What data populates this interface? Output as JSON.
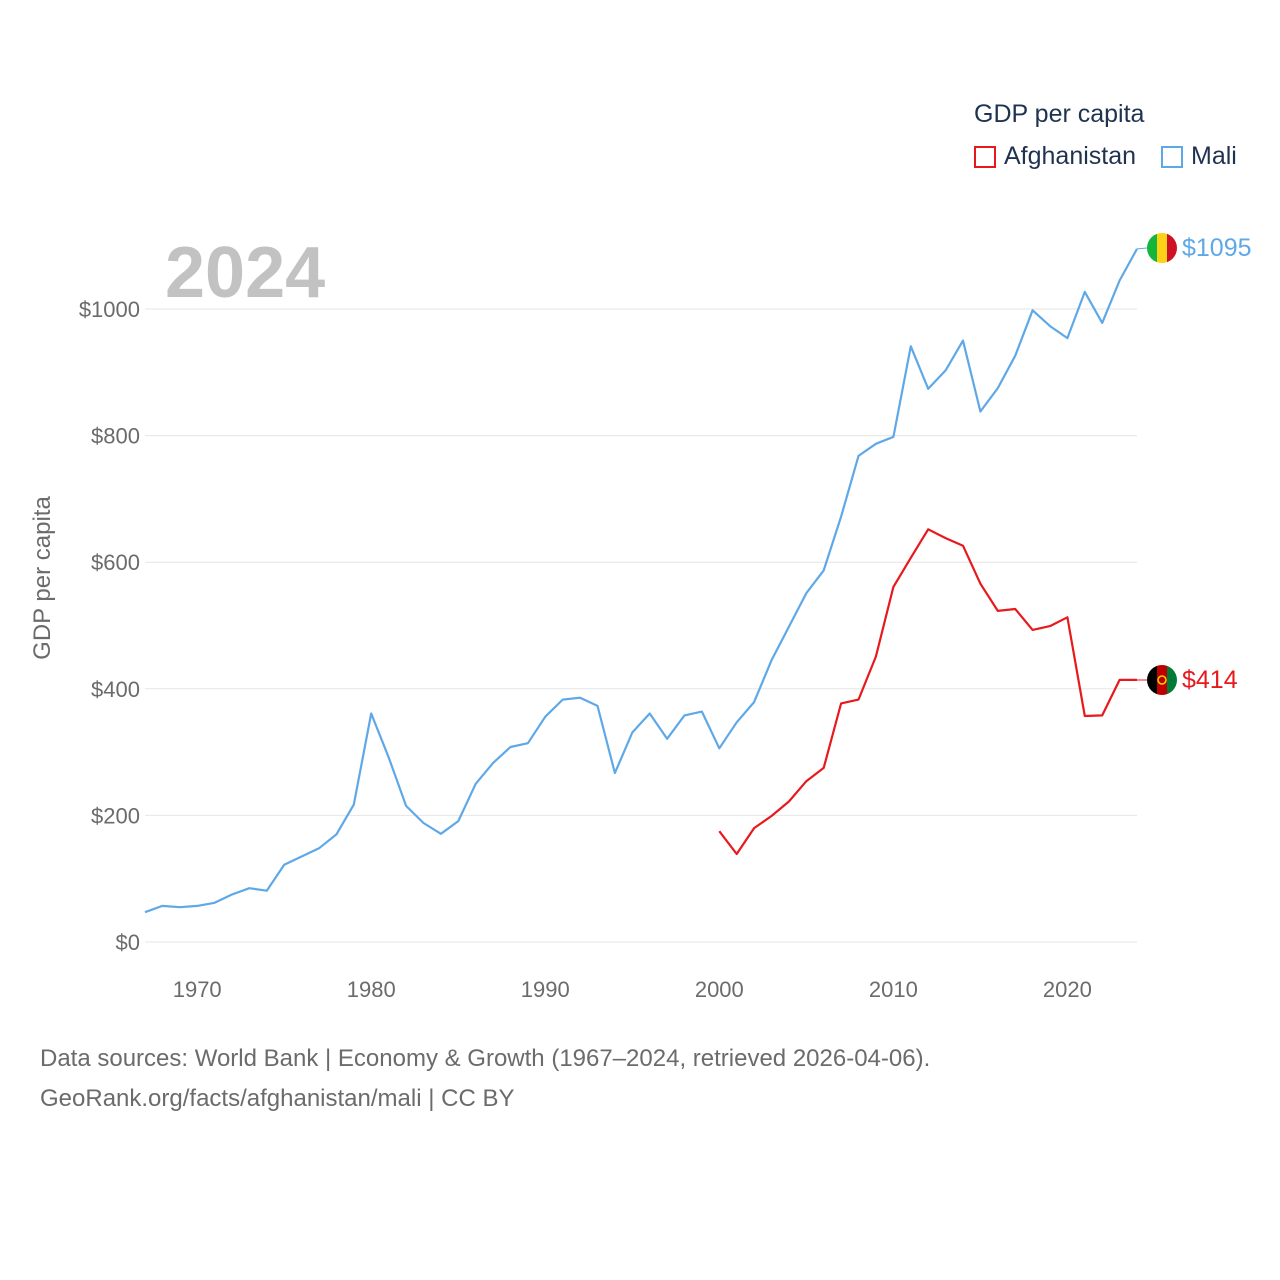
{
  "legend": {
    "title": "GDP per capita",
    "items": [
      {
        "name": "Afghanistan",
        "color": "#e8191c"
      },
      {
        "name": "Mali",
        "color": "#5fa8e8"
      }
    ]
  },
  "year_label": "2024",
  "footer": {
    "line1": "Data sources: World Bank | Economy & Growth (1967–2024, retrieved 2026-04-06).",
    "line2": "GeoRank.org/facts/afghanistan/mali | CC BY"
  },
  "chart_data": {
    "type": "line",
    "title": "GDP per capita",
    "xlabel": "",
    "ylabel": "GDP per capita",
    "xlim": [
      1967,
      2024
    ],
    "ylim": [
      0,
      1000
    ],
    "yticks": [
      0,
      200,
      400,
      600,
      800,
      1000
    ],
    "ytick_labels": [
      "$0",
      "$200",
      "$400",
      "$600",
      "$800",
      "$1000"
    ],
    "xticks": [
      1970,
      1980,
      1990,
      2000,
      2010,
      2020
    ],
    "xtick_labels": [
      "1970",
      "1980",
      "1990",
      "2000",
      "2010",
      "2020"
    ],
    "grid": true,
    "series": [
      {
        "name": "Mali",
        "color": "#5fa8e8",
        "end_label": "$1095",
        "x": [
          1967,
          1968,
          1969,
          1970,
          1971,
          1972,
          1973,
          1974,
          1975,
          1976,
          1977,
          1978,
          1979,
          1980,
          1981,
          1982,
          1983,
          1984,
          1985,
          1986,
          1987,
          1988,
          1989,
          1990,
          1991,
          1992,
          1993,
          1994,
          1995,
          1996,
          1997,
          1998,
          1999,
          2000,
          2001,
          2002,
          2003,
          2004,
          2005,
          2006,
          2007,
          2008,
          2009,
          2010,
          2011,
          2012,
          2013,
          2014,
          2015,
          2016,
          2017,
          2018,
          2019,
          2020,
          2021,
          2022,
          2023,
          2024
        ],
        "values": [
          47,
          57,
          55,
          57,
          62,
          75,
          85,
          81,
          122,
          135,
          148,
          170,
          217,
          361,
          292,
          215,
          188,
          171,
          191,
          250,
          283,
          308,
          314,
          356,
          383,
          386,
          373,
          267,
          331,
          361,
          321,
          358,
          364,
          306,
          347,
          379,
          445,
          498,
          551,
          587,
          672,
          768,
          787,
          798,
          941,
          874,
          903,
          950,
          838,
          875,
          926,
          998,
          973,
          954,
          1027,
          978,
          1045,
          1095
        ]
      },
      {
        "name": "Afghanistan",
        "color": "#e8191c",
        "end_label": "$414",
        "x": [
          2000,
          2001,
          2002,
          2003,
          2004,
          2005,
          2006,
          2007,
          2008,
          2009,
          2010,
          2011,
          2012,
          2013,
          2014,
          2015,
          2016,
          2017,
          2018,
          2019,
          2020,
          2021,
          2022,
          2023,
          2024
        ],
        "values": [
          175,
          139,
          180,
          199,
          222,
          254,
          275,
          377,
          383,
          451,
          561,
          607,
          652,
          638,
          626,
          566,
          523,
          526,
          493,
          499,
          513,
          357,
          358,
          414,
          414
        ]
      }
    ]
  }
}
